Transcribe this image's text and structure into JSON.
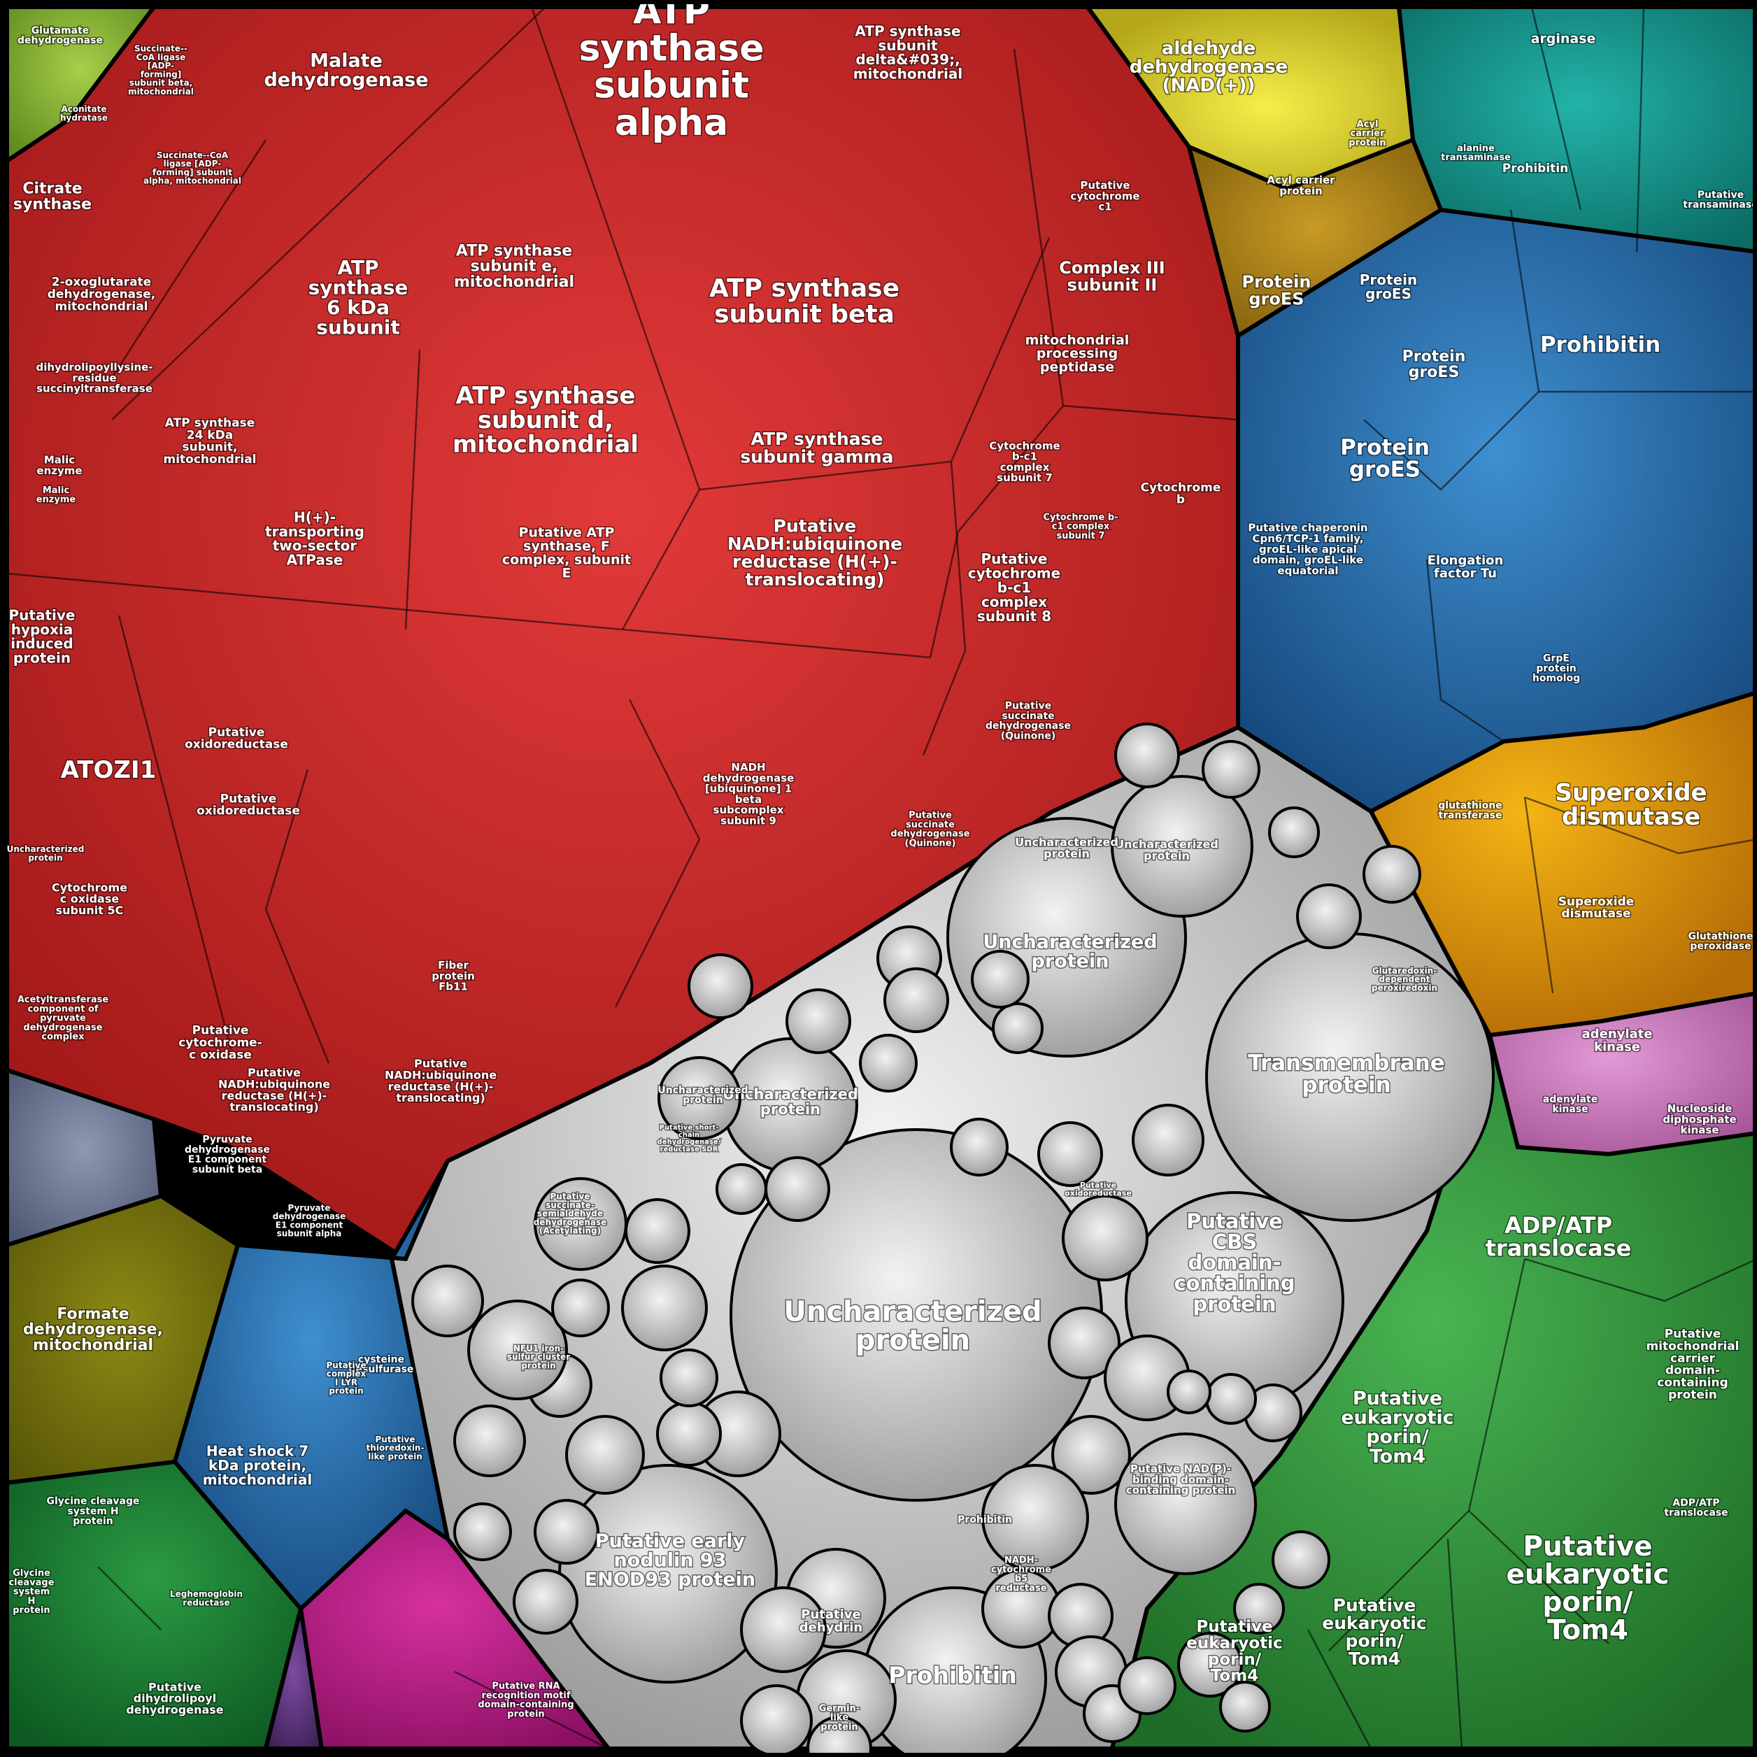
{
  "chart_data": {
    "type": "voronoi-treemap",
    "title": "",
    "groups": [
      {
        "name": "red",
        "color": "#c42626"
      },
      {
        "name": "grey",
        "color": "#c8c8c8"
      },
      {
        "name": "blue",
        "color": "#2a6aa8"
      },
      {
        "name": "green",
        "color": "#2f8f3a"
      },
      {
        "name": "orange",
        "color": "#e39a0c"
      },
      {
        "name": "teal",
        "color": "#169a92"
      },
      {
        "name": "yellow",
        "color": "#d8cc2c"
      },
      {
        "name": "pink",
        "color": "#c878bb"
      },
      {
        "name": "magenta",
        "color": "#b81f86"
      },
      {
        "name": "olive",
        "color": "#77730f"
      },
      {
        "name": "darkgreen",
        "color": "#1c7a34"
      },
      {
        "name": "lime",
        "color": "#86b235"
      },
      {
        "name": "brown",
        "color": "#a67a12"
      },
      {
        "name": "slate",
        "color": "#6a7590"
      },
      {
        "name": "purple",
        "color": "#5a3378"
      }
    ],
    "labels": [
      {
        "group": "red",
        "lines": [
          "ATP",
          "synthase",
          "subunit",
          "alpha"
        ]
      },
      {
        "group": "red",
        "lines": [
          "ATP synthase",
          "subunit beta"
        ]
      },
      {
        "group": "red",
        "lines": [
          "ATP synthase",
          "subunit d,",
          "mitochondrial"
        ]
      },
      {
        "group": "red",
        "lines": [
          "ATP",
          "synthase",
          "6 kDa",
          "subunit"
        ]
      },
      {
        "group": "red",
        "lines": [
          "ATP synthase",
          "subunit e,",
          "mitochondrial"
        ]
      },
      {
        "group": "red",
        "lines": [
          "ATP synthase",
          "subunit gamma"
        ]
      },
      {
        "group": "red",
        "lines": [
          "ATP synthase",
          "subunit",
          "delta&#039;,",
          "mitochondrial"
        ]
      },
      {
        "group": "red",
        "lines": [
          "Malate",
          "dehydrogenase"
        ]
      },
      {
        "group": "red",
        "lines": [
          "Citrate",
          "synthase"
        ]
      },
      {
        "group": "red",
        "lines": [
          "2-oxoglutarate",
          "dehydrogenase,",
          "mitochondrial"
        ]
      },
      {
        "group": "red",
        "lines": [
          "dihydrolipoyllysine-",
          "residue",
          "succinyltransferase"
        ]
      },
      {
        "group": "red",
        "lines": [
          "Malic",
          "enzyme"
        ]
      },
      {
        "group": "red",
        "lines": [
          "Malic",
          "enzyme"
        ]
      },
      {
        "group": "red",
        "lines": [
          "Aconitate",
          "hydratase"
        ]
      },
      {
        "group": "red",
        "lines": [
          "Succinate--",
          "CoA ligase",
          "[ADP-",
          "forming]",
          "subunit beta,",
          "mitochondrial"
        ]
      },
      {
        "group": "red",
        "lines": [
          "Succinate--CoA",
          "ligase [ADP-",
          "forming] subunit",
          "alpha, mitochondrial"
        ]
      },
      {
        "group": "red",
        "lines": [
          "ATP synthase",
          "24 kDa",
          "subunit,",
          "mitochondrial"
        ]
      },
      {
        "group": "red",
        "lines": [
          "H(+)-",
          "transporting",
          "two-sector",
          "ATPase"
        ]
      },
      {
        "group": "red",
        "lines": [
          "Putative ATP",
          "synthase, F",
          "complex, subunit",
          "E"
        ]
      },
      {
        "group": "red",
        "lines": [
          "Putative",
          "NADH:ubiquinone",
          "reductase (H(+)-",
          "translocating)"
        ]
      },
      {
        "group": "red",
        "lines": [
          "Putative",
          "cytochrome",
          "b-c1",
          "complex",
          "subunit 8"
        ]
      },
      {
        "group": "red",
        "lines": [
          "Complex III",
          "subunit II"
        ]
      },
      {
        "group": "red",
        "lines": [
          "mitochondrial",
          "processing",
          "peptidase"
        ]
      },
      {
        "group": "red",
        "lines": [
          "Putative",
          "cytochrome",
          "c1"
        ]
      },
      {
        "group": "red",
        "lines": [
          "Cytochrome",
          "b"
        ]
      },
      {
        "group": "red",
        "lines": [
          "Cytochrome",
          "b-c1",
          "complex",
          "subunit 7"
        ]
      },
      {
        "group": "red",
        "lines": [
          "Cytochrome b-",
          "c1 complex",
          "subunit 7"
        ]
      },
      {
        "group": "red",
        "lines": [
          "ATOZI1"
        ]
      },
      {
        "group": "red",
        "lines": [
          "Putative",
          "hypoxia",
          "induced",
          "protein"
        ]
      },
      {
        "group": "red",
        "lines": [
          "Putative",
          "oxidoreductase"
        ]
      },
      {
        "group": "red",
        "lines": [
          "Putative",
          "oxidoreductase"
        ]
      },
      {
        "group": "red",
        "lines": [
          "Cytochrome",
          "c oxidase",
          "subunit 5C"
        ]
      },
      {
        "group": "red",
        "lines": [
          "Putative",
          "cytochrome-",
          "c oxidase"
        ]
      },
      {
        "group": "red",
        "lines": [
          "Acetyltransferase",
          "component of",
          "pyruvate",
          "dehydrogenase",
          "complex"
        ]
      },
      {
        "group": "red",
        "lines": [
          "Pyruvate",
          "dehydrogenase",
          "E1 component",
          "subunit beta"
        ]
      },
      {
        "group": "red",
        "lines": [
          "Pyruvate",
          "dehydrogenase",
          "E1 component",
          "subunit alpha"
        ]
      },
      {
        "group": "red",
        "lines": [
          "Fiber",
          "protein",
          "Fb11"
        ]
      },
      {
        "group": "red",
        "lines": [
          "Putative",
          "NADH:ubiquinone",
          "reductase (H(+)-",
          "translocating)"
        ]
      },
      {
        "group": "red",
        "lines": [
          "Putative",
          "NADH:ubiquinone",
          "reductase (H(+)-",
          "translocating)"
        ]
      },
      {
        "group": "red",
        "lines": [
          "NADH",
          "dehydrogenase",
          "[ubiquinone] 1",
          "beta",
          "subcomplex",
          "subunit 9"
        ]
      },
      {
        "group": "red",
        "lines": [
          "Putative",
          "succinate",
          "dehydrogenase",
          "(Quinone)"
        ]
      },
      {
        "group": "red",
        "lines": [
          "Putative",
          "succinate",
          "dehydrogenase",
          "(Quinone)"
        ]
      },
      {
        "group": "red",
        "lines": [
          "Uncharacterized",
          "protein"
        ]
      },
      {
        "group": "grey",
        "lines": [
          "Uncharacterized",
          "protein"
        ]
      },
      {
        "group": "grey",
        "lines": [
          "Uncharacterized",
          "protein"
        ]
      },
      {
        "group": "grey",
        "lines": [
          "Uncharacterized",
          "protein"
        ]
      },
      {
        "group": "grey",
        "lines": [
          "Uncharacterized",
          "protein"
        ]
      },
      {
        "group": "grey",
        "lines": [
          "Transmembrane",
          "protein"
        ]
      },
      {
        "group": "grey",
        "lines": [
          "Putative",
          "CBS",
          "domain-",
          "containing",
          "protein"
        ]
      },
      {
        "group": "grey",
        "lines": [
          "Putative early",
          "nodulin 93",
          "ENOD93 protein"
        ]
      },
      {
        "group": "grey",
        "lines": [
          "Prohibitin"
        ]
      },
      {
        "group": "grey",
        "lines": [
          "Prohibitin"
        ]
      },
      {
        "group": "grey",
        "lines": [
          "Putative",
          "dehydrin"
        ]
      },
      {
        "group": "grey",
        "lines": [
          "Uncharacterized",
          "protein"
        ]
      },
      {
        "group": "grey",
        "lines": [
          "Uncharacterized",
          "protein"
        ]
      },
      {
        "group": "grey",
        "lines": [
          "NFU1 iron-",
          "sulfur cluster",
          "protein"
        ]
      },
      {
        "group": "grey",
        "lines": [
          "Putative",
          "succinate-",
          "semialdehyde",
          "dehydrogenase",
          "(Acetylating)"
        ]
      },
      {
        "group": "grey",
        "lines": [
          "Putative short-",
          "chain",
          "dehydrogenase/",
          "reductase SDR"
        ]
      },
      {
        "group": "grey",
        "lines": [
          "Putative NAD(P)-",
          "binding domain-",
          "containing protein"
        ]
      },
      {
        "group": "grey",
        "lines": [
          "Putative",
          "oxidoreductase"
        ]
      },
      {
        "group": "grey",
        "lines": [
          "NADH-",
          "cytochrome",
          "b5",
          "reductase"
        ]
      },
      {
        "group": "grey",
        "lines": [
          "Germin-",
          "like",
          "protein"
        ]
      },
      {
        "group": "blue",
        "lines": [
          "Protein",
          "groES"
        ]
      },
      {
        "group": "blue",
        "lines": [
          "Protein",
          "groES"
        ]
      },
      {
        "group": "blue",
        "lines": [
          "Protein",
          "groES"
        ]
      },
      {
        "group": "blue",
        "lines": [
          "Protein",
          "groES"
        ]
      },
      {
        "group": "blue",
        "lines": [
          "Prohibitin"
        ]
      },
      {
        "group": "blue",
        "lines": [
          "Prohibitin"
        ]
      },
      {
        "group": "blue",
        "lines": [
          "Putative chaperonin",
          "Cpn6/TCP-1 family,",
          "groEL-like apical",
          "domain, groEL-like",
          "equatorial"
        ]
      },
      {
        "group": "blue",
        "lines": [
          "Elongation",
          "factor Tu"
        ]
      },
      {
        "group": "blue",
        "lines": [
          "GrpE",
          "protein",
          "homolog"
        ]
      },
      {
        "group": "blue",
        "lines": [
          "Heat shock 7",
          "kDa protein,",
          "mitochondrial"
        ]
      },
      {
        "group": "blue",
        "lines": [
          "cysteine",
          "desulfurase"
        ]
      },
      {
        "group": "blue",
        "lines": [
          "Putative",
          "complex",
          "I LYR",
          "protein"
        ]
      },
      {
        "group": "blue",
        "lines": [
          "Putative",
          "thioredoxin-",
          "like protein"
        ]
      },
      {
        "group": "green",
        "lines": [
          "ADP/ATP",
          "translocase"
        ]
      },
      {
        "group": "green",
        "lines": [
          "Putative",
          "eukaryotic",
          "porin/",
          "Tom4"
        ]
      },
      {
        "group": "green",
        "lines": [
          "Putative",
          "eukaryotic",
          "porin/",
          "Tom4"
        ]
      },
      {
        "group": "green",
        "lines": [
          "Putative",
          "eukaryotic",
          "porin/",
          "Tom4"
        ]
      },
      {
        "group": "green",
        "lines": [
          "Putative",
          "eukaryotic",
          "porin/",
          "Tom4"
        ]
      },
      {
        "group": "green",
        "lines": [
          "Putative",
          "mitochondrial",
          "carrier",
          "domain-",
          "containing",
          "protein"
        ]
      },
      {
        "group": "green",
        "lines": [
          "ADP/ATP",
          "translocase"
        ]
      },
      {
        "group": "orange",
        "lines": [
          "Superoxide",
          "dismutase"
        ]
      },
      {
        "group": "orange",
        "lines": [
          "Superoxide",
          "dismutase"
        ]
      },
      {
        "group": "orange",
        "lines": [
          "glutathione",
          "transferase"
        ]
      },
      {
        "group": "orange",
        "lines": [
          "Glutathione",
          "peroxidase"
        ]
      },
      {
        "group": "orange",
        "lines": [
          "Glutaredoxin-",
          "dependent",
          "peroxiredoxin"
        ]
      },
      {
        "group": "teal",
        "lines": [
          "arginase"
        ]
      },
      {
        "group": "teal",
        "lines": [
          "alanine",
          "transaminase"
        ]
      },
      {
        "group": "teal",
        "lines": [
          "Putative",
          "transaminase"
        ]
      },
      {
        "group": "yellow",
        "lines": [
          "aldehyde",
          "dehydrogenase",
          "(NAD(+))"
        ]
      },
      {
        "group": "brown",
        "lines": [
          "Acyl carrier",
          "protein"
        ]
      },
      {
        "group": "brown",
        "lines": [
          "Acyl",
          "carrier",
          "protein"
        ]
      },
      {
        "group": "pink",
        "lines": [
          "adenylate",
          "kinase"
        ]
      },
      {
        "group": "pink",
        "lines": [
          "adenylate",
          "kinase"
        ]
      },
      {
        "group": "pink",
        "lines": [
          "Nucleoside",
          "diphosphate",
          "kinase"
        ]
      },
      {
        "group": "magenta",
        "lines": [
          "Putative RNA",
          "recognition motif",
          "domain-containing",
          "protein"
        ]
      },
      {
        "group": "olive",
        "lines": [
          "Formate",
          "dehydrogenase,",
          "mitochondrial"
        ]
      },
      {
        "group": "darkgreen",
        "lines": [
          "Glycine cleavage",
          "system H",
          "protein"
        ]
      },
      {
        "group": "darkgreen",
        "lines": [
          "Glycine",
          "cleavage",
          "system",
          "H",
          "protein"
        ]
      },
      {
        "group": "darkgreen",
        "lines": [
          "Putative",
          "dihydrolipoyl",
          "dehydrogenase"
        ]
      },
      {
        "group": "darkgreen",
        "lines": [
          "Leghemoglobin",
          "reductase"
        ]
      },
      {
        "group": "lime",
        "lines": [
          "Glutamate",
          "dehydrogenase"
        ]
      }
    ]
  }
}
